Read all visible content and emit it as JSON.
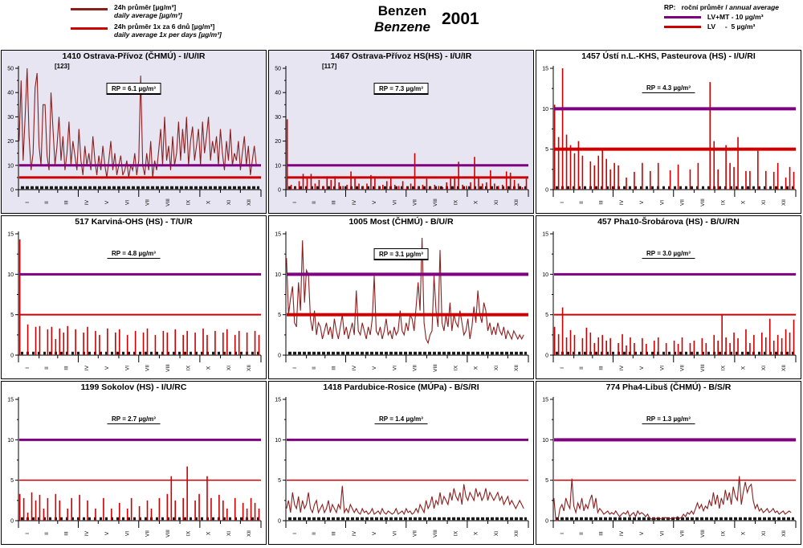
{
  "header": {
    "legend_left": {
      "daily": {
        "label_cs": "24h průměr [µg/m³]",
        "label_en": "daily average [µg/m³]",
        "color": "#8b1f1f"
      },
      "six_day": {
        "label_cs": "24h průměr 1x za 6 dnů [µg/m³]",
        "label_en": "daily average 1x per days [µg/m³]",
        "color": "#cc0000"
      }
    },
    "title_cs": "Benzen",
    "title_en": "Benzene",
    "year": "2001",
    "legend_right": {
      "rp_prefix": "RP:",
      "rp_cs": "roční průměr / ",
      "rp_en": "annual average",
      "lvmt_label": "LV+MT - 10 µg/m³",
      "lvmt_color": "#800080",
      "lv_label": "LV     -  5 µg/m³",
      "lv_color": "#cc0000"
    }
  },
  "months": [
    "I",
    "II",
    "III",
    "IV",
    "V",
    "VI",
    "VII",
    "VIII",
    "IX",
    "X",
    "XI",
    "XII"
  ],
  "ref_lines": {
    "lvmt": {
      "value": 10,
      "color": "#800080"
    },
    "lv": {
      "value": 5,
      "color": "#cc0000"
    }
  },
  "chart_data": [
    {
      "type": "line",
      "title": "1410 Ostrava-Přívoz (ČHMÚ) - I/U/IR",
      "rp_label": "RP = 6.1 µg/m³",
      "peak_label": "[123]",
      "rp_boxed": true,
      "bg": "#e7e5f1",
      "color": "#8b1f1f",
      "ylim": [
        0,
        50
      ],
      "yticks": [
        0,
        10,
        20,
        30,
        40,
        50
      ],
      "xlabel": "",
      "ylabel": "µg/m³",
      "step_days": 3,
      "values": [
        20,
        45,
        12,
        30,
        50,
        22,
        8,
        15,
        42,
        48,
        18,
        10,
        35,
        35,
        14,
        8,
        40,
        25,
        10,
        18,
        30,
        12,
        22,
        8,
        15,
        28,
        10,
        20,
        14,
        8,
        25,
        12,
        6,
        18,
        10,
        15,
        8,
        22,
        12,
        6,
        14,
        8,
        18,
        10,
        5,
        12,
        20,
        8,
        15,
        6,
        10,
        14,
        6,
        8,
        12,
        5,
        10,
        8,
        15,
        6,
        12,
        47,
        10,
        6,
        15,
        8,
        20,
        5,
        12,
        8,
        16,
        25,
        10,
        30,
        12,
        18,
        8,
        22,
        10,
        15,
        28,
        12,
        25,
        15,
        30,
        10,
        20,
        26,
        12,
        18,
        25,
        10,
        28,
        15,
        22,
        30,
        12,
        20,
        15,
        22,
        10,
        25,
        15,
        8,
        20,
        12,
        25,
        10,
        15,
        12,
        20,
        8,
        15,
        22,
        10,
        18,
        6,
        12,
        18,
        10
      ]
    },
    {
      "type": "impulse",
      "title": "1467 Ostrava-Přívoz HS(HS) - I/U/IR",
      "rp_label": "RP = 7.3 µg/m³",
      "peak_label": "[117]",
      "rp_boxed": true,
      "bg": "#e7e5f1",
      "color": "#cc0000",
      "ylim": [
        0,
        50
      ],
      "yticks": [
        0,
        10,
        20,
        30,
        40,
        50
      ],
      "xlabel": "",
      "ylabel": "µg/m³",
      "step_days": 6,
      "values": [
        29,
        2,
        1,
        3.5,
        6.5,
        5,
        6.5,
        2.5,
        4,
        1.5,
        5.5,
        4,
        5.5,
        3,
        1.5,
        2,
        7.5,
        5,
        2.5,
        1.5,
        2.5,
        6,
        5.5,
        1.5,
        2,
        3.5,
        5,
        2,
        1.5,
        3.5,
        1,
        2.5,
        15,
        1.5,
        2,
        4.5,
        1,
        2,
        1.5,
        1,
        3,
        4.5,
        5.5,
        11.5,
        2,
        1.5,
        3,
        13.5,
        5,
        2.5,
        3,
        8,
        2.5,
        1.5,
        2,
        7.5,
        7,
        4,
        2.5,
        1,
        4.5
      ]
    },
    {
      "type": "impulse",
      "title": "1457 Ústí n.L.-KHS, Pasteurova (HS) - I/U/RI",
      "rp_label": "RP = 4.3 µg/m³",
      "peak_label": "",
      "rp_boxed": false,
      "bg": "#ffffff",
      "color": "#cc0000",
      "ylim": [
        0,
        15
      ],
      "yticks": [
        0,
        5,
        10,
        15
      ],
      "xlabel": "",
      "ylabel": "µg/m³",
      "step_days": 6,
      "values": [
        10.5,
        6.5,
        15,
        6.8,
        5.5,
        4.5,
        6,
        4.2,
        0,
        3.5,
        3,
        4.2,
        5,
        3.8,
        2.5,
        3.3,
        3,
        0,
        1.5,
        0,
        2.2,
        0,
        3.3,
        0,
        2.3,
        0,
        3.3,
        0,
        0,
        2.4,
        0,
        3.1,
        0,
        0,
        2.5,
        0,
        3.3,
        0,
        0,
        13.3,
        6,
        2.5,
        0,
        5.5,
        3.3,
        2.8,
        6.5,
        0,
        2.3,
        2.3,
        0,
        4.8,
        0,
        2.3,
        0,
        2.2,
        3.3,
        0,
        1.5,
        2.8,
        2.2
      ]
    },
    {
      "type": "impulse",
      "title": "517 Karviná-OHS (HS) - T/U/R",
      "rp_label": "RP = 4.8 µg/m³",
      "peak_label": "",
      "rp_boxed": false,
      "bg": "#ffffff",
      "color": "#cc0000",
      "ylim": [
        0,
        15
      ],
      "yticks": [
        0,
        5,
        10,
        15
      ],
      "xlabel": "",
      "ylabel": "µg/m³",
      "step_days": 6,
      "values": [
        14.3,
        0,
        3.8,
        0,
        3.5,
        3.6,
        0,
        3.2,
        3.5,
        2,
        3.3,
        2.8,
        3.6,
        0,
        3.2,
        0,
        2.8,
        3.5,
        0,
        3,
        2.5,
        0,
        3.3,
        0,
        2.8,
        3.2,
        0,
        2.5,
        0,
        3,
        0,
        2.8,
        3.3,
        0,
        2.5,
        0,
        3,
        2.8,
        0,
        3.2,
        0,
        2.5,
        3,
        0,
        2.8,
        0,
        3.3,
        2.5,
        0,
        3,
        0,
        2.8,
        3.2,
        0,
        2.5,
        3,
        0,
        2.8,
        0,
        3,
        2.5
      ]
    },
    {
      "type": "line",
      "title": "1005 Most (ČHMÚ) - B/U/R",
      "rp_label": "RP = 3.1 µg/m³",
      "peak_label": "",
      "rp_boxed": true,
      "bg": "#ffffff",
      "color": "#8b1f1f",
      "ylim": [
        0,
        15
      ],
      "yticks": [
        0,
        5,
        10,
        15
      ],
      "xlabel": "",
      "ylabel": "µg/m³",
      "step_days": 3,
      "values": [
        12,
        5,
        7,
        8.5,
        4,
        3.5,
        9,
        5.5,
        14.2,
        6.5,
        10.5,
        10,
        4.5,
        3,
        5.5,
        2.5,
        4,
        3.5,
        2,
        3,
        4,
        2.5,
        3.5,
        2,
        4.5,
        3,
        2,
        3.5,
        5,
        2.5,
        3.5,
        2,
        3,
        4,
        2.5,
        8,
        3,
        2.5,
        4,
        3,
        2,
        3.5,
        2.5,
        4.5,
        9.8,
        3,
        2.5,
        3.5,
        2,
        3,
        4.5,
        2.5,
        3,
        2,
        3.5,
        2.5,
        3,
        5.5,
        3,
        2.5,
        4,
        3,
        5,
        4.5,
        3,
        6,
        9,
        5.5,
        14.5,
        4,
        2,
        1.5,
        2.5,
        3,
        9.8,
        5.5,
        3.5,
        13,
        4,
        3,
        5,
        3.5,
        6.5,
        3,
        5,
        4,
        3.5,
        5.5,
        4,
        2.5,
        3,
        4.5,
        2,
        3.5,
        6,
        4,
        8,
        5,
        4,
        6.5,
        5.5,
        3,
        4,
        2.5,
        3.5,
        2.5,
        4,
        3,
        2.5,
        3.5,
        2,
        3,
        2.5,
        2,
        3,
        2.5,
        2,
        2.5,
        2,
        2.5
      ]
    },
    {
      "type": "impulse",
      "title": "457 Pha10-Šrobárova (HS) - B/U/RN",
      "rp_label": "RP = 3.0 µg/m³",
      "peak_label": "",
      "rp_boxed": false,
      "bg": "#ffffff",
      "color": "#cc0000",
      "ylim": [
        0,
        15
      ],
      "yticks": [
        0,
        5,
        10,
        15
      ],
      "xlabel": "",
      "ylabel": "µg/m³",
      "step_days": 6,
      "values": [
        3.5,
        2.6,
        5.9,
        2.2,
        3.1,
        2.5,
        0,
        2.1,
        3.4,
        2.8,
        1.5,
        2.2,
        2.5,
        1.8,
        2.1,
        0,
        1.5,
        2.6,
        1.2,
        2.2,
        1.5,
        0,
        2.1,
        1.4,
        0,
        1.8,
        2.2,
        0,
        1.5,
        0,
        1.8,
        1.4,
        2.2,
        0,
        1.5,
        1.8,
        0,
        2.1,
        1.5,
        0,
        2.5,
        1.8,
        5,
        2.2,
        1.5,
        2.8,
        2.1,
        0,
        3.2,
        1.5,
        2.5,
        0,
        2.8,
        2.2,
        4.5,
        1.8,
        2.5,
        2.1,
        3.2,
        2.8,
        4.4
      ]
    },
    {
      "type": "impulse",
      "title": "1199 Sokolov (HS) - I/U/RC",
      "rp_label": "RP = 2.7 µg/m³",
      "peak_label": "",
      "rp_boxed": false,
      "bg": "#ffffff",
      "color": "#cc0000",
      "ylim": [
        0,
        15
      ],
      "yticks": [
        0,
        5,
        10,
        15
      ],
      "xlabel": "",
      "ylabel": "µg/m³",
      "step_days": 6,
      "values": [
        3.3,
        2.8,
        1,
        3.5,
        2.5,
        3.2,
        1.5,
        2.8,
        0,
        3.3,
        2.5,
        0,
        1.5,
        2.8,
        0,
        3.2,
        0,
        2.5,
        0,
        1.5,
        0,
        2.8,
        0,
        1.5,
        0,
        2.2,
        0,
        1.5,
        2.8,
        0,
        1.8,
        0,
        2.5,
        1.5,
        0,
        2.8,
        0,
        3.3,
        5.5,
        2.5,
        0,
        2.8,
        6.7,
        0,
        2.5,
        3.3,
        0,
        5.5,
        2.8,
        0,
        3.2,
        2.5,
        1.5,
        0,
        2.8,
        0,
        2.2,
        1.5,
        2.8,
        2.2,
        1.5
      ]
    },
    {
      "type": "line",
      "title": "1418 Pardubice-Rosice (MÚPa) - B/S/RI",
      "rp_label": "RP = 1.4 µg/m³",
      "peak_label": "",
      "rp_boxed": false,
      "bg": "#ffffff",
      "color": "#8b1f1f",
      "ylim": [
        0,
        15
      ],
      "yticks": [
        0,
        5,
        10,
        15
      ],
      "xlabel": "",
      "ylabel": "µg/m³",
      "step_days": 3,
      "values": [
        1.5,
        2.5,
        1,
        3.5,
        2,
        1.5,
        3,
        1,
        2.5,
        1.5,
        2,
        3.5,
        1.5,
        1,
        2,
        2.5,
        1,
        1.5,
        2,
        1,
        1.5,
        2.5,
        1,
        2,
        1.5,
        1,
        2,
        1.5,
        4.3,
        1,
        1.5,
        1,
        2,
        1.5,
        1,
        1.5,
        1,
        0.8,
        1.5,
        1,
        1.2,
        0.8,
        1,
        1.5,
        0.8,
        1,
        1.2,
        0.8,
        1.5,
        1,
        0.8,
        1.2,
        1,
        0.8,
        1,
        1.5,
        0.8,
        1,
        1.2,
        0.8,
        1.5,
        1,
        1.2,
        0.8,
        1,
        1.5,
        1,
        2,
        1.5,
        1,
        2.5,
        1.5,
        2,
        3,
        1.5,
        2.5,
        2,
        3.5,
        2,
        3,
        2.5,
        2,
        3.5,
        2.5,
        4,
        3,
        2.5,
        3.5,
        2,
        4.5,
        3,
        2.5,
        3.5,
        3,
        2.5,
        4,
        3,
        3.5,
        2.5,
        3,
        4,
        2.5,
        3.5,
        3,
        2.5,
        3,
        3.5,
        2.5,
        3,
        2,
        2.5,
        3,
        2,
        2.5,
        2,
        1.5,
        2,
        2.5,
        2,
        1.5
      ]
    },
    {
      "type": "line",
      "title": "774 Pha4-Libuš (ČHMÚ) - B/S/R",
      "rp_label": "RP = 1.3 µg/m³",
      "peak_label": "",
      "rp_boxed": false,
      "bg": "#ffffff",
      "color": "#8b1f1f",
      "ylim": [
        0,
        15
      ],
      "yticks": [
        0,
        5,
        10,
        15
      ],
      "xlabel": "",
      "ylabel": "µg/m³",
      "step_days": 3,
      "values": [
        2.8,
        0,
        0,
        1.5,
        2,
        1.2,
        2.8,
        2,
        1.5,
        5.2,
        1.8,
        1,
        2.2,
        1.5,
        2.8,
        1.2,
        2,
        1.5,
        2.5,
        3.2,
        1.5,
        2.8,
        1,
        1.5,
        1.2,
        0.8,
        1,
        1.2,
        0.8,
        1,
        0.8,
        1.2,
        0.8,
        0.5,
        0.8,
        1,
        0.8,
        1.2,
        0.5,
        0.8,
        1,
        0.5,
        1.2,
        0.8,
        1,
        0.8,
        0.5,
        0.8,
        0.3,
        0.2,
        0.3,
        0.2,
        0.4,
        0.3,
        0.2,
        0.3,
        0.4,
        0.2,
        0.3,
        0.2,
        0.4,
        0.3,
        0.5,
        0.3,
        0.4,
        0.8,
        0.5,
        1,
        0.8,
        1.2,
        0.8,
        1.5,
        2.2,
        1.5,
        2,
        1.2,
        1.8,
        1.5,
        2.5,
        1.8,
        3.5,
        2,
        3.2,
        1.5,
        2.8,
        2,
        3.8,
        2.5,
        3.5,
        2,
        4.2,
        3,
        2.5,
        5.5,
        2,
        3.5,
        4.8,
        3.5,
        4.2,
        4.5,
        2.5,
        1.5,
        2,
        1.2,
        1.5,
        1,
        1.2,
        1.5,
        1,
        1.2,
        1.5,
        1,
        1.2,
        0.8,
        1,
        1.2,
        0.8,
        1,
        1.2,
        1
      ]
    }
  ]
}
